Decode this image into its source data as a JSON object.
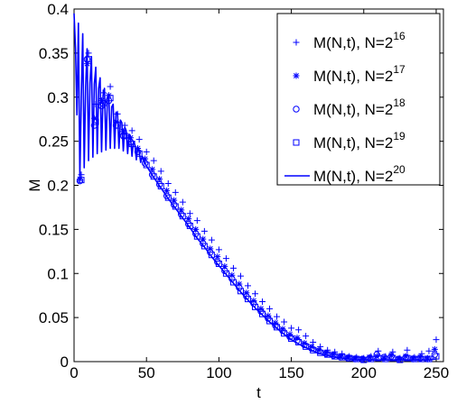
{
  "chart_data": {
    "type": "line",
    "xlabel": "t",
    "ylabel": "M",
    "xlim": [
      0,
      255
    ],
    "ylim": [
      0,
      0.4
    ],
    "xticks": [
      0,
      50,
      100,
      150,
      200,
      250
    ],
    "yticks": [
      0,
      0.05,
      0.1,
      0.15,
      0.2,
      0.25,
      0.3,
      0.35,
      0.4
    ],
    "grid": false,
    "legend_position": "top-right",
    "color": "#0000ff",
    "series": [
      {
        "name": "M(N,t), N=2^16",
        "legend_main": "M(N,t), N=2",
        "legend_exp": "16",
        "marker": "plus",
        "style": "markers",
        "x": [
          5,
          10,
          15,
          20,
          25,
          30,
          35,
          40,
          45,
          50,
          55,
          60,
          65,
          70,
          75,
          80,
          85,
          90,
          95,
          100,
          105,
          110,
          115,
          120,
          125,
          130,
          135,
          140,
          145,
          150,
          155,
          160,
          165,
          170,
          175,
          180,
          185,
          190,
          195,
          200,
          205,
          210,
          215,
          220,
          225,
          230,
          235,
          240,
          245,
          250
        ],
        "y": [
          0.212,
          0.35,
          0.292,
          0.305,
          0.312,
          0.281,
          0.268,
          0.262,
          0.252,
          0.238,
          0.228,
          0.216,
          0.202,
          0.192,
          0.181,
          0.168,
          0.16,
          0.148,
          0.138,
          0.127,
          0.117,
          0.106,
          0.097,
          0.086,
          0.077,
          0.068,
          0.06,
          0.051,
          0.045,
          0.038,
          0.036,
          0.029,
          0.022,
          0.017,
          0.013,
          0.011,
          0.009,
          0.006,
          0.005,
          0.004,
          0.006,
          0.012,
          0.006,
          0.011,
          0.004,
          0.013,
          0.005,
          0.009,
          0.012,
          0.025
        ]
      },
      {
        "name": "M(N,t), N=2^17",
        "legend_main": "M(N,t), N=2",
        "legend_exp": "17",
        "marker": "star",
        "style": "markers",
        "x": [
          4,
          9,
          14,
          19,
          24,
          29,
          34,
          39,
          44,
          49,
          54,
          59,
          64,
          69,
          74,
          79,
          84,
          89,
          94,
          99,
          104,
          109,
          114,
          119,
          124,
          129,
          134,
          139,
          144,
          149,
          154,
          159,
          164,
          169,
          174,
          179,
          184,
          189,
          194,
          199,
          204,
          209,
          214,
          219,
          224,
          229,
          234,
          239,
          244,
          249
        ],
        "y": [
          0.207,
          0.338,
          0.276,
          0.296,
          0.302,
          0.272,
          0.261,
          0.254,
          0.242,
          0.23,
          0.218,
          0.207,
          0.194,
          0.183,
          0.172,
          0.162,
          0.15,
          0.139,
          0.128,
          0.119,
          0.108,
          0.098,
          0.088,
          0.078,
          0.069,
          0.06,
          0.052,
          0.044,
          0.037,
          0.031,
          0.027,
          0.021,
          0.017,
          0.013,
          0.01,
          0.008,
          0.006,
          0.005,
          0.004,
          0.003,
          0.005,
          0.006,
          0.004,
          0.007,
          0.003,
          0.006,
          0.004,
          0.005,
          0.004,
          0.014
        ]
      },
      {
        "name": "M(N,t), N=2^18",
        "legend_main": "M(N,t), N=2",
        "legend_exp": "18",
        "marker": "circle",
        "style": "markers",
        "x": [
          4,
          9,
          14,
          19,
          24,
          29,
          34,
          39,
          44,
          49,
          54,
          59,
          64,
          69,
          74,
          79,
          84,
          89,
          94,
          99,
          104,
          109,
          114,
          119,
          124,
          129,
          134,
          139,
          144,
          149,
          154,
          159,
          164,
          169,
          174,
          179,
          184,
          189,
          194,
          199,
          204,
          209,
          214,
          219,
          224,
          229,
          234,
          239,
          244,
          249
        ],
        "y": [
          0.205,
          0.343,
          0.268,
          0.29,
          0.296,
          0.268,
          0.256,
          0.249,
          0.238,
          0.225,
          0.212,
          0.201,
          0.188,
          0.178,
          0.167,
          0.156,
          0.145,
          0.134,
          0.124,
          0.113,
          0.103,
          0.094,
          0.084,
          0.074,
          0.066,
          0.057,
          0.049,
          0.041,
          0.035,
          0.028,
          0.024,
          0.019,
          0.015,
          0.012,
          0.009,
          0.007,
          0.005,
          0.004,
          0.003,
          0.003,
          0.004,
          0.008,
          0.005,
          0.006,
          0.003,
          0.005,
          0.003,
          0.004,
          0.003,
          0.008
        ]
      },
      {
        "name": "M(N,t), N=2^19",
        "legend_main": "M(N,t), N=2",
        "legend_exp": "19",
        "marker": "square",
        "style": "markers",
        "x": [
          5,
          10,
          15,
          20,
          25,
          30,
          35,
          40,
          45,
          50,
          55,
          60,
          65,
          70,
          75,
          80,
          85,
          90,
          95,
          100,
          105,
          110,
          115,
          120,
          125,
          130,
          135,
          140,
          145,
          150,
          155,
          160,
          165,
          170,
          175,
          180,
          185,
          190,
          195,
          200,
          205,
          210,
          215,
          220,
          225,
          230,
          235,
          240,
          245,
          250
        ],
        "y": [
          0.206,
          0.343,
          0.272,
          0.293,
          0.299,
          0.268,
          0.256,
          0.247,
          0.236,
          0.223,
          0.21,
          0.199,
          0.186,
          0.176,
          0.165,
          0.154,
          0.142,
          0.131,
          0.121,
          0.111,
          0.1,
          0.09,
          0.08,
          0.071,
          0.062,
          0.054,
          0.046,
          0.039,
          0.032,
          0.026,
          0.022,
          0.017,
          0.013,
          0.01,
          0.008,
          0.006,
          0.005,
          0.004,
          0.003,
          0.002,
          0.003,
          0.004,
          0.003,
          0.004,
          0.002,
          0.004,
          0.003,
          0.003,
          0.003,
          0.006
        ]
      },
      {
        "name": "M(N,t), N=2^20",
        "legend_main": "M(N,t), N=2",
        "legend_exp": "20",
        "marker": "none",
        "style": "line",
        "x": [
          0,
          1,
          2,
          3,
          4,
          5,
          6,
          7,
          8,
          9,
          10,
          11,
          12,
          13,
          14,
          15,
          16,
          17,
          18,
          19,
          20,
          21,
          22,
          23,
          24,
          25,
          26,
          27,
          28,
          29,
          30,
          31,
          32,
          33,
          34,
          35,
          36,
          37,
          38,
          39,
          40,
          41,
          42,
          43,
          44,
          45,
          46,
          47,
          48,
          50,
          55,
          60,
          65,
          70,
          75,
          80,
          85,
          90,
          95,
          100,
          105,
          110,
          115,
          120,
          125,
          130,
          135,
          140,
          145,
          150,
          155,
          160,
          165,
          170,
          175,
          180,
          185,
          190,
          195,
          200,
          205,
          210,
          215,
          220,
          225,
          230,
          235,
          240,
          245,
          250
        ],
        "y": [
          0.395,
          0.355,
          0.28,
          0.384,
          0.208,
          0.3,
          0.372,
          0.22,
          0.312,
          0.355,
          0.228,
          0.316,
          0.346,
          0.232,
          0.315,
          0.334,
          0.236,
          0.31,
          0.322,
          0.238,
          0.302,
          0.31,
          0.24,
          0.296,
          0.302,
          0.242,
          0.289,
          0.292,
          0.242,
          0.283,
          0.282,
          0.242,
          0.274,
          0.271,
          0.239,
          0.266,
          0.262,
          0.236,
          0.258,
          0.254,
          0.233,
          0.25,
          0.246,
          0.229,
          0.243,
          0.238,
          0.226,
          0.233,
          0.228,
          0.222,
          0.209,
          0.197,
          0.185,
          0.174,
          0.163,
          0.152,
          0.14,
          0.13,
          0.119,
          0.109,
          0.099,
          0.089,
          0.079,
          0.07,
          0.061,
          0.053,
          0.045,
          0.038,
          0.031,
          0.025,
          0.02,
          0.016,
          0.012,
          0.009,
          0.007,
          0.005,
          0.004,
          0.003,
          0.002,
          0.002,
          0.002,
          0.002,
          0.002,
          0.002,
          0.002,
          0.002,
          0.002,
          0.002,
          0.002,
          0.003
        ]
      }
    ]
  }
}
